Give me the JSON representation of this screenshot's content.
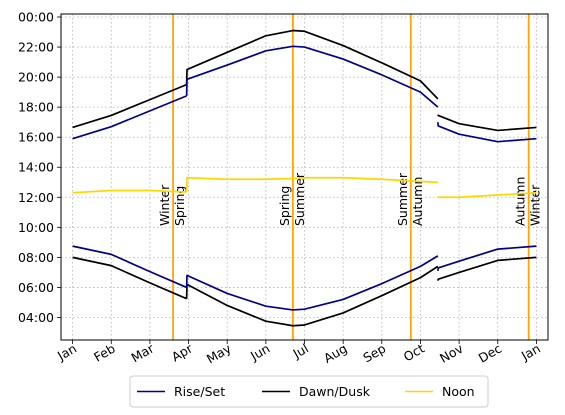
{
  "chart_data": {
    "type": "line",
    "title": "",
    "xlabel": "",
    "ylabel": "",
    "grid": true,
    "legend_position": "bottom-center",
    "x_tick_labels": [
      "Jan",
      "Feb",
      "Mar",
      "Apr",
      "May",
      "Jun",
      "Jul",
      "Aug",
      "Sep",
      "Oct",
      "Nov",
      "Dec",
      "Jan"
    ],
    "y_tick_labels": [
      "04:00",
      "06:00",
      "08:00",
      "10:00",
      "12:00",
      "14:00",
      "16:00",
      "18:00",
      "20:00",
      "22:00",
      "00:00"
    ],
    "y_ticks_hours": [
      4,
      6,
      8,
      10,
      12,
      14,
      16,
      18,
      20,
      22,
      24
    ],
    "xlim_months": [
      -0.3,
      12.3
    ],
    "ylim_hours": [
      2.5,
      24.2
    ],
    "season_lines": [
      {
        "month": 2.6,
        "labels": [
          "Winter",
          "Spring"
        ]
      },
      {
        "month": 5.7,
        "labels": [
          "Spring",
          "Summer"
        ]
      },
      {
        "month": 8.75,
        "labels": [
          "Summer",
          "Autumn"
        ]
      },
      {
        "month": 11.8,
        "labels": [
          "Autumn",
          "Winter"
        ]
      }
    ],
    "series": [
      {
        "name": "Rise/Set",
        "color": "#00008b",
        "lines": [
          {
            "x": [
              0,
              1,
              2,
              2.95
            ],
            "y": [
              8.75,
              8.2,
              7.05,
              6.0
            ]
          },
          {
            "x": [
              2.95,
              2.96,
              4,
              5,
              5.7,
              6,
              7,
              8,
              9,
              9.45
            ],
            "y": [
              6.0,
              6.8,
              5.6,
              4.75,
              4.5,
              4.55,
              5.2,
              6.25,
              7.4,
              8.1
            ]
          },
          {
            "x": [
              9.45,
              9.46,
              10,
              11,
              12
            ],
            "y": [
              7.1,
              7.3,
              7.75,
              8.55,
              8.75
            ]
          },
          {
            "x": [
              0,
              1,
              2,
              2.95
            ],
            "y": [
              15.9,
              16.7,
              17.75,
              18.75
            ]
          },
          {
            "x": [
              2.95,
              2.96,
              4,
              5,
              5.7,
              6,
              7,
              8,
              9,
              9.45
            ],
            "y": [
              18.75,
              19.85,
              20.8,
              21.75,
              22.05,
              22.0,
              21.2,
              20.15,
              19.0,
              18.0
            ]
          },
          {
            "x": [
              9.45,
              9.46,
              10,
              11,
              12
            ],
            "y": [
              17.0,
              16.75,
              16.2,
              15.7,
              15.9
            ]
          }
        ]
      },
      {
        "name": "Dawn/Dusk",
        "color": "#000000",
        "lines": [
          {
            "x": [
              0,
              1,
              2,
              2.95
            ],
            "y": [
              8.0,
              7.45,
              6.3,
              5.25
            ]
          },
          {
            "x": [
              2.95,
              2.96,
              4,
              5,
              5.7,
              6,
              7,
              8,
              9,
              9.45
            ],
            "y": [
              5.25,
              6.2,
              4.8,
              3.75,
              3.45,
              3.5,
              4.3,
              5.45,
              6.65,
              7.4
            ]
          },
          {
            "x": [
              9.45,
              9.46,
              10,
              11,
              12
            ],
            "y": [
              6.45,
              6.55,
              7.0,
              7.8,
              8.0
            ]
          },
          {
            "x": [
              0,
              1,
              2,
              2.95
            ],
            "y": [
              16.65,
              17.45,
              18.5,
              19.5
            ]
          },
          {
            "x": [
              2.95,
              2.96,
              4,
              5,
              5.7,
              6,
              7,
              8,
              9,
              9.45
            ],
            "y": [
              19.5,
              20.5,
              21.65,
              22.75,
              23.1,
              23.05,
              22.1,
              20.95,
              19.75,
              18.55
            ]
          },
          {
            "x": [
              9.45,
              9.46,
              10,
              11,
              12
            ],
            "y": [
              17.5,
              17.45,
              16.9,
              16.45,
              16.65
            ]
          }
        ]
      },
      {
        "name": "Noon",
        "color": "#ffd700",
        "lines": [
          {
            "x": [
              0,
              1,
              2,
              2.95
            ],
            "y": [
              12.3,
              12.45,
              12.45,
              12.35
            ]
          },
          {
            "x": [
              2.95,
              2.96,
              4,
              5,
              5.7,
              6,
              7,
              8,
              9,
              9.45
            ],
            "y": [
              12.35,
              13.3,
              13.2,
              13.2,
              13.25,
              13.3,
              13.3,
              13.2,
              13.05,
              13.0
            ]
          },
          {
            "x": [
              9.45,
              9.46,
              10,
              11,
              12
            ],
            "y": [
              12.0,
              12.0,
              12.0,
              12.15,
              12.3
            ]
          }
        ]
      }
    ]
  }
}
